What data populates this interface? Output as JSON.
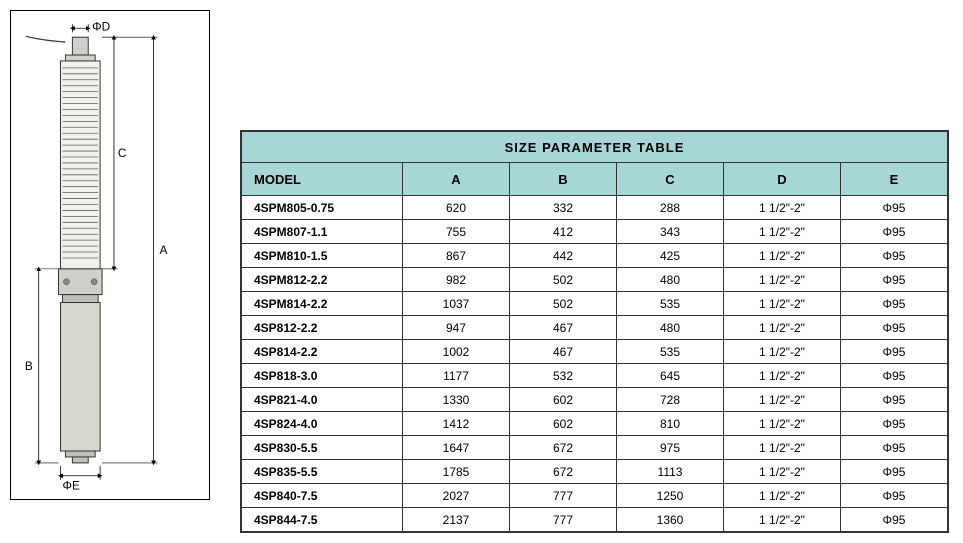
{
  "diagram": {
    "labels": {
      "top": "ΦD",
      "rightUpper": "C",
      "rightFull": "A",
      "leftLower": "B",
      "bottom": "ΦE"
    },
    "pump_body_color": "#d0d0c8",
    "pump_outline_color": "#333333",
    "hatch_color": "#606060",
    "dim_line_color": "#000000",
    "font_size": 12
  },
  "table": {
    "title": "SIZE PARAMETER TABLE",
    "title_fontsize": 13,
    "header_bg": "#a8d5d5",
    "border_color": "#333333",
    "columns": [
      "MODEL",
      "A",
      "B",
      "C",
      "D",
      "E"
    ],
    "col_model_width": 140,
    "col_data_width": 90,
    "col_d_width": 100,
    "rows": [
      [
        "4SPM805-0.75",
        "620",
        "332",
        "288",
        "1 1/2\"-2\"",
        "Φ95"
      ],
      [
        "4SPM807-1.1",
        "755",
        "412",
        "343",
        "1 1/2\"-2\"",
        "Φ95"
      ],
      [
        "4SPM810-1.5",
        "867",
        "442",
        "425",
        "1 1/2\"-2\"",
        "Φ95"
      ],
      [
        "4SPM812-2.2",
        "982",
        "502",
        "480",
        "1 1/2\"-2\"",
        "Φ95"
      ],
      [
        "4SPM814-2.2",
        "1037",
        "502",
        "535",
        "1 1/2\"-2\"",
        "Φ95"
      ],
      [
        "4SP812-2.2",
        "947",
        "467",
        "480",
        "1 1/2\"-2\"",
        "Φ95"
      ],
      [
        "4SP814-2.2",
        "1002",
        "467",
        "535",
        "1 1/2\"-2\"",
        "Φ95"
      ],
      [
        "4SP818-3.0",
        "1177",
        "532",
        "645",
        "1 1/2\"-2\"",
        "Φ95"
      ],
      [
        "4SP821-4.0",
        "1330",
        "602",
        "728",
        "1 1/2\"-2\"",
        "Φ95"
      ],
      [
        "4SP824-4.0",
        "1412",
        "602",
        "810",
        "1 1/2\"-2\"",
        "Φ95"
      ],
      [
        "4SP830-5.5",
        "1647",
        "672",
        "975",
        "1 1/2\"-2\"",
        "Φ95"
      ],
      [
        "4SP835-5.5",
        "1785",
        "672",
        "1113",
        "1 1/2\"-2\"",
        "Φ95"
      ],
      [
        "4SP840-7.5",
        "2027",
        "777",
        "1250",
        "1 1/2\"-2\"",
        "Φ95"
      ],
      [
        "4SP844-7.5",
        "2137",
        "777",
        "1360",
        "1 1/2\"-2\"",
        "Φ95"
      ]
    ]
  }
}
